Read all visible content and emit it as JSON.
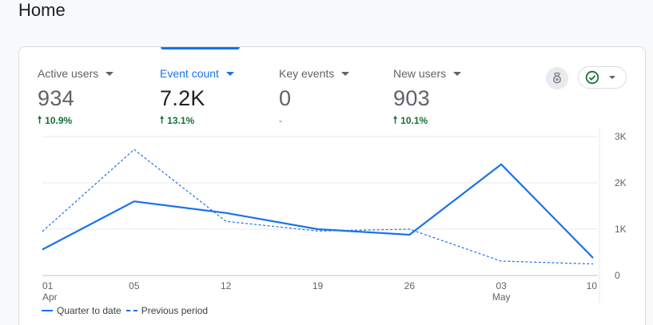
{
  "page": {
    "title": "Home"
  },
  "metrics": [
    {
      "label": "Active users",
      "value": "934",
      "delta": "10.9%",
      "delta_dir": "up"
    },
    {
      "label": "Event count",
      "value": "7.2K",
      "delta": "13.1%",
      "delta_dir": "up",
      "selected": true
    },
    {
      "label": "Key events",
      "value": "0",
      "delta": "-",
      "delta_dir": "none"
    },
    {
      "label": "New users",
      "value": "903",
      "delta": "10.1%",
      "delta_dir": "up"
    }
  ],
  "actions": {
    "insights_icon": "insights-badge-icon",
    "status_icon": "check-circle-icon"
  },
  "colors": {
    "accent": "#1a73e8",
    "positive": "#137333",
    "muted": "#5f6368"
  },
  "chart_data": {
    "type": "line",
    "x": [
      "01 Apr",
      "05",
      "12",
      "19",
      "26",
      "03 May",
      "10"
    ],
    "x_tick_labels": [
      {
        "day": "01",
        "month": "Apr"
      },
      {
        "day": "05",
        "month": ""
      },
      {
        "day": "12",
        "month": ""
      },
      {
        "day": "19",
        "month": ""
      },
      {
        "day": "26",
        "month": ""
      },
      {
        "day": "03",
        "month": "May"
      },
      {
        "day": "10",
        "month": ""
      }
    ],
    "y_ticks": [
      "0",
      "1K",
      "2K",
      "3K"
    ],
    "ylim": [
      0,
      3000
    ],
    "grid": true,
    "series": [
      {
        "name": "Quarter to date",
        "style": "solid",
        "values": [
          560,
          1600,
          1350,
          1000,
          880,
          2400,
          380
        ]
      },
      {
        "name": "Previous period",
        "style": "dashed",
        "values": [
          950,
          2720,
          1170,
          960,
          1000,
          310,
          250
        ]
      }
    ],
    "legend_position": "bottom-left"
  }
}
